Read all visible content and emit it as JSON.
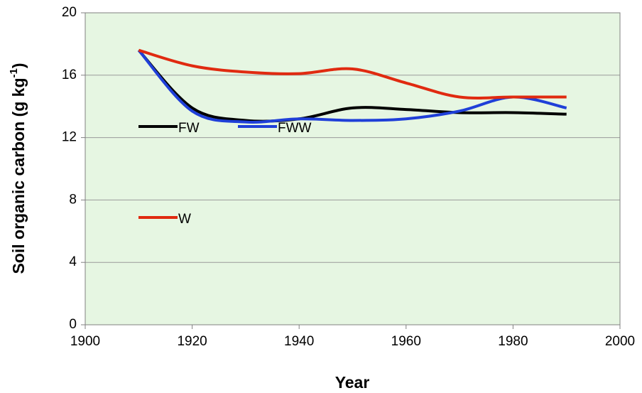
{
  "chart_data": {
    "type": "line",
    "x_label": "Year",
    "y_label": {
      "text": "Soil organic carbon (g kg",
      "sup": "-1",
      "tail": ")"
    },
    "x": [
      1910,
      1920,
      1930,
      1940,
      1950,
      1960,
      1970,
      1980,
      1990
    ],
    "series": [
      {
        "name": "FW",
        "color": "#000000",
        "values": [
          17.6,
          13.9,
          13.1,
          13.2,
          13.9,
          13.8,
          13.6,
          13.6,
          13.5
        ]
      },
      {
        "name": "FWW",
        "color": "#1f3fd8",
        "values": [
          17.6,
          13.7,
          13.0,
          13.2,
          13.1,
          13.2,
          13.7,
          14.6,
          13.9
        ]
      },
      {
        "name": "W",
        "color": "#e02a10",
        "values": [
          17.6,
          16.6,
          16.2,
          16.1,
          16.4,
          15.5,
          14.6,
          14.6,
          14.6
        ]
      }
    ],
    "xlim": [
      1900,
      2000
    ],
    "xticks": [
      1900,
      1920,
      1940,
      1960,
      1980,
      2000
    ],
    "ylim": [
      0,
      20
    ],
    "yticks": [
      0,
      4,
      8,
      12,
      16,
      20
    ],
    "grid": true,
    "smooth": true,
    "plot_background": "#e6f6e2"
  }
}
